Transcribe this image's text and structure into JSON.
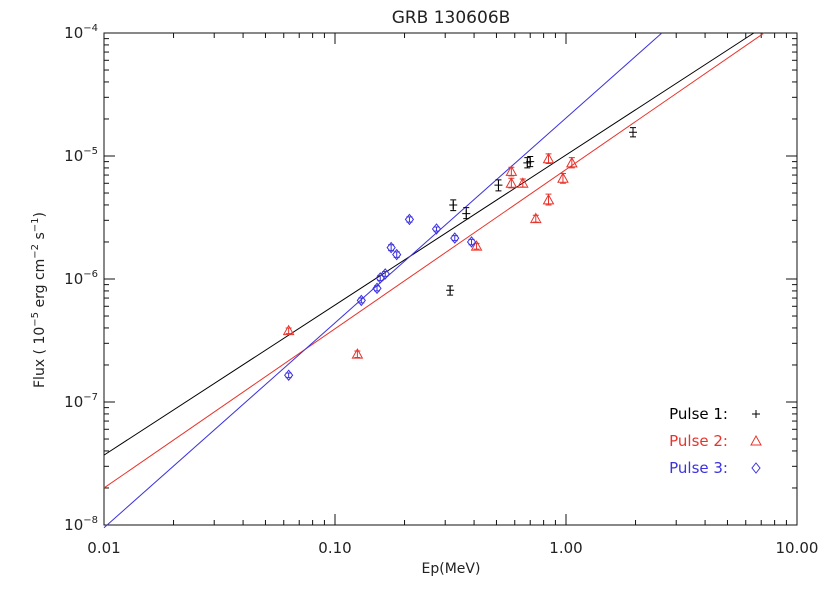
{
  "chart_data": {
    "type": "scatter",
    "title": "GRB 130606B",
    "xlabel": "Ep(MeV)",
    "ylabel": "Flux ( 10^-5 erg cm^-2 s^-1)",
    "ylabel_parts": {
      "prefix": "Flux ( 10",
      "exp1": "−5",
      "mid": " erg cm",
      "exp2": "−2",
      "mid2": " s",
      "exp3": "−1",
      "suffix": ")"
    },
    "x_scale": "log",
    "y_scale": "log",
    "xlim": [
      0.01,
      10
    ],
    "ylim": [
      1e-08,
      0.0001
    ],
    "x_ticks": [
      {
        "value": 0.01,
        "label": "0.01"
      },
      {
        "value": 0.1,
        "label": "0.10"
      },
      {
        "value": 1,
        "label": "1.00"
      },
      {
        "value": 10,
        "label": "10.00"
      }
    ],
    "y_ticks": [
      {
        "value": 1e-08,
        "mantissa": "10",
        "exp": "−8"
      },
      {
        "value": 1e-07,
        "mantissa": "10",
        "exp": "−7"
      },
      {
        "value": 1e-06,
        "mantissa": "10",
        "exp": "−6"
      },
      {
        "value": 1e-05,
        "mantissa": "10",
        "exp": "−5"
      },
      {
        "value": 0.0001,
        "mantissa": "10",
        "exp": "−4"
      }
    ],
    "grid": false,
    "legend_position": "bottom-right",
    "series": [
      {
        "name": "Pulse 1:",
        "marker": "plus",
        "color": "#000000",
        "points": [
          {
            "x": 0.315,
            "y": 8.1e-07,
            "yerr": [
              7.4e-07,
              8.8e-07
            ]
          },
          {
            "x": 0.325,
            "y": 4e-06,
            "yerr": [
              3.6e-06,
              4.4e-06
            ]
          },
          {
            "x": 0.37,
            "y": 3.4e-06,
            "yerr": [
              3.1e-06,
              3.8e-06
            ]
          },
          {
            "x": 0.51,
            "y": 5.8e-06,
            "yerr": [
              5.2e-06,
              6.4e-06
            ]
          },
          {
            "x": 0.68,
            "y": 8.8e-06,
            "yerr": [
              8e-06,
              9.7e-06
            ]
          },
          {
            "x": 0.7,
            "y": 9e-06,
            "yerr": [
              8.2e-06,
              9.9e-06
            ]
          },
          {
            "x": 1.95,
            "y": 1.56e-05,
            "yerr": [
              1.43e-05,
              1.7e-05
            ]
          }
        ],
        "fit": [
          [
            0.01,
            3.7e-08
          ],
          [
            6.5,
            0.0001
          ]
        ]
      },
      {
        "name": "Pulse 2:",
        "marker": "triangle",
        "color": "#e8332b",
        "points": [
          {
            "x": 0.063,
            "y": 3.8e-07,
            "yerr": [
              3.6e-07,
              4e-07
            ]
          },
          {
            "x": 0.125,
            "y": 2.45e-07,
            "yerr": [
              2.3e-07,
              2.6e-07
            ]
          },
          {
            "x": 0.41,
            "y": 1.85e-06,
            "yerr": [
              1.75e-06,
              1.95e-06
            ]
          },
          {
            "x": 0.58,
            "y": 7.5e-06,
            "yerr": [
              6.9e-06,
              8.1e-06
            ]
          },
          {
            "x": 0.58,
            "y": 6e-06,
            "yerr": [
              5.5e-06,
              6.6e-06
            ]
          },
          {
            "x": 0.65,
            "y": 6e-06,
            "yerr": [
              5.6e-06,
              6.5e-06
            ]
          },
          {
            "x": 0.74,
            "y": 3.1e-06,
            "yerr": [
              2.9e-06,
              3.3e-06
            ]
          },
          {
            "x": 0.84,
            "y": 9.5e-06,
            "yerr": [
              8.7e-06,
              1.04e-05
            ]
          },
          {
            "x": 0.84,
            "y": 4.4e-06,
            "yerr": [
              4e-06,
              4.9e-06
            ]
          },
          {
            "x": 0.97,
            "y": 6.6e-06,
            "yerr": [
              6e-06,
              7.2e-06
            ]
          },
          {
            "x": 1.06,
            "y": 8.8e-06,
            "yerr": [
              8e-06,
              9.7e-06
            ]
          }
        ],
        "fit": [
          [
            0.01,
            2e-08
          ],
          [
            7.2,
            0.0001
          ]
        ]
      },
      {
        "name": "Pulse 3:",
        "marker": "diamond",
        "color": "#3b32e0",
        "points": [
          {
            "x": 0.063,
            "y": 1.65e-07,
            "yerr": [
              1.58e-07,
              1.72e-07
            ]
          },
          {
            "x": 0.13,
            "y": 6.7e-07,
            "yerr": [
              6.4e-07,
              7e-07
            ]
          },
          {
            "x": 0.152,
            "y": 8.4e-07,
            "yerr": [
              8e-07,
              8.8e-07
            ]
          },
          {
            "x": 0.157,
            "y": 1.02e-06,
            "yerr": [
              9.7e-07,
              1.07e-06
            ]
          },
          {
            "x": 0.165,
            "y": 1.1e-06,
            "yerr": [
              1.05e-06,
              1.15e-06
            ]
          },
          {
            "x": 0.175,
            "y": 1.8e-06,
            "yerr": [
              1.7e-06,
              1.9e-06
            ]
          },
          {
            "x": 0.185,
            "y": 1.58e-06,
            "yerr": [
              1.5e-06,
              1.66e-06
            ]
          },
          {
            "x": 0.21,
            "y": 3.05e-06,
            "yerr": [
              2.9e-06,
              3.2e-06
            ]
          },
          {
            "x": 0.275,
            "y": 2.55e-06,
            "yerr": [
              2.45e-06,
              2.65e-06
            ]
          },
          {
            "x": 0.33,
            "y": 2.15e-06,
            "yerr": [
              2.05e-06,
              2.25e-06
            ]
          },
          {
            "x": 0.39,
            "y": 2e-06,
            "yerr": [
              1.9e-06,
              2.1e-06
            ]
          }
        ],
        "fit": [
          [
            0.01,
            9.5e-09
          ],
          [
            2.6,
            0.0001
          ]
        ]
      }
    ]
  }
}
